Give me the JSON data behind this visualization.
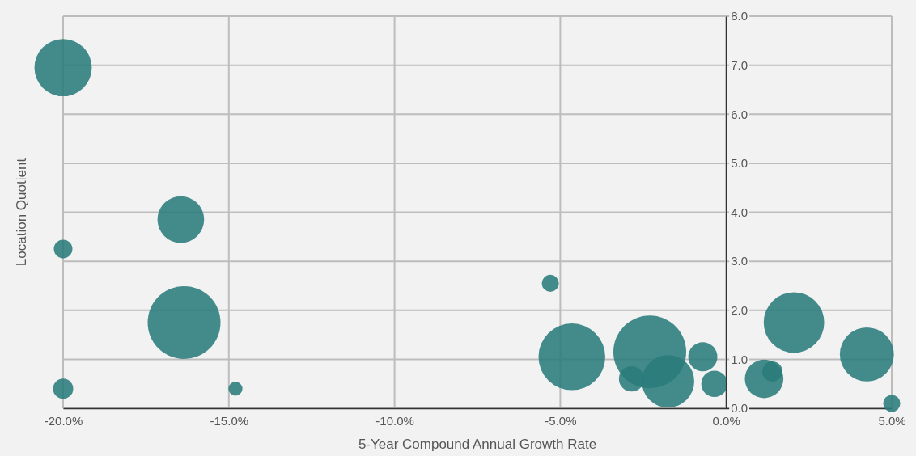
{
  "chart_data": {
    "type": "bubble",
    "xlabel": "5-Year Compound Annual Growth Rate",
    "ylabel": "Location Quotient",
    "xlim": [
      -20,
      5
    ],
    "ylim": [
      0,
      8
    ],
    "xticks": [
      {
        "value": -20,
        "label": "-20.0%"
      },
      {
        "value": -15,
        "label": "-15.0%"
      },
      {
        "value": -10,
        "label": "-10.0%"
      },
      {
        "value": -5,
        "label": "-5.0%"
      },
      {
        "value": 0,
        "label": "0.0%"
      },
      {
        "value": 5,
        "label": "5.0%"
      }
    ],
    "yticks": [
      {
        "value": 0,
        "label": "0.0"
      },
      {
        "value": 1,
        "label": "1.0"
      },
      {
        "value": 2,
        "label": "2.0"
      },
      {
        "value": 3,
        "label": "3.0"
      },
      {
        "value": 4,
        "label": "4.0"
      },
      {
        "value": 5,
        "label": "5.0"
      },
      {
        "value": 6,
        "label": "6.0"
      },
      {
        "value": 7,
        "label": "7.0"
      },
      {
        "value": 8,
        "label": "8.0"
      }
    ],
    "grid": true,
    "marker": "circle",
    "series": [
      {
        "color": "#2a7b7b",
        "x": [
          -20.0,
          -20.0,
          -20.0,
          -16.45,
          -16.35,
          -14.8,
          -5.3,
          -4.65,
          -2.85,
          -2.3,
          -1.75,
          -0.7,
          -0.35,
          1.15,
          1.4,
          2.05,
          4.25,
          5.0
        ],
        "values": [
          6.95,
          3.25,
          0.4,
          3.85,
          1.75,
          0.4,
          2.55,
          1.05,
          0.6,
          1.15,
          0.55,
          1.05,
          0.5,
          0.6,
          0.75,
          1.75,
          1.1,
          0.1
        ],
        "sizes": [
          0.62,
          0.065,
          0.077,
          0.41,
          1,
          0.037,
          0.055,
          0.84,
          0.12,
          1,
          0.52,
          0.16,
          0.13,
          0.28,
          0.077,
          0.69,
          0.55,
          0.055
        ]
      }
    ]
  }
}
